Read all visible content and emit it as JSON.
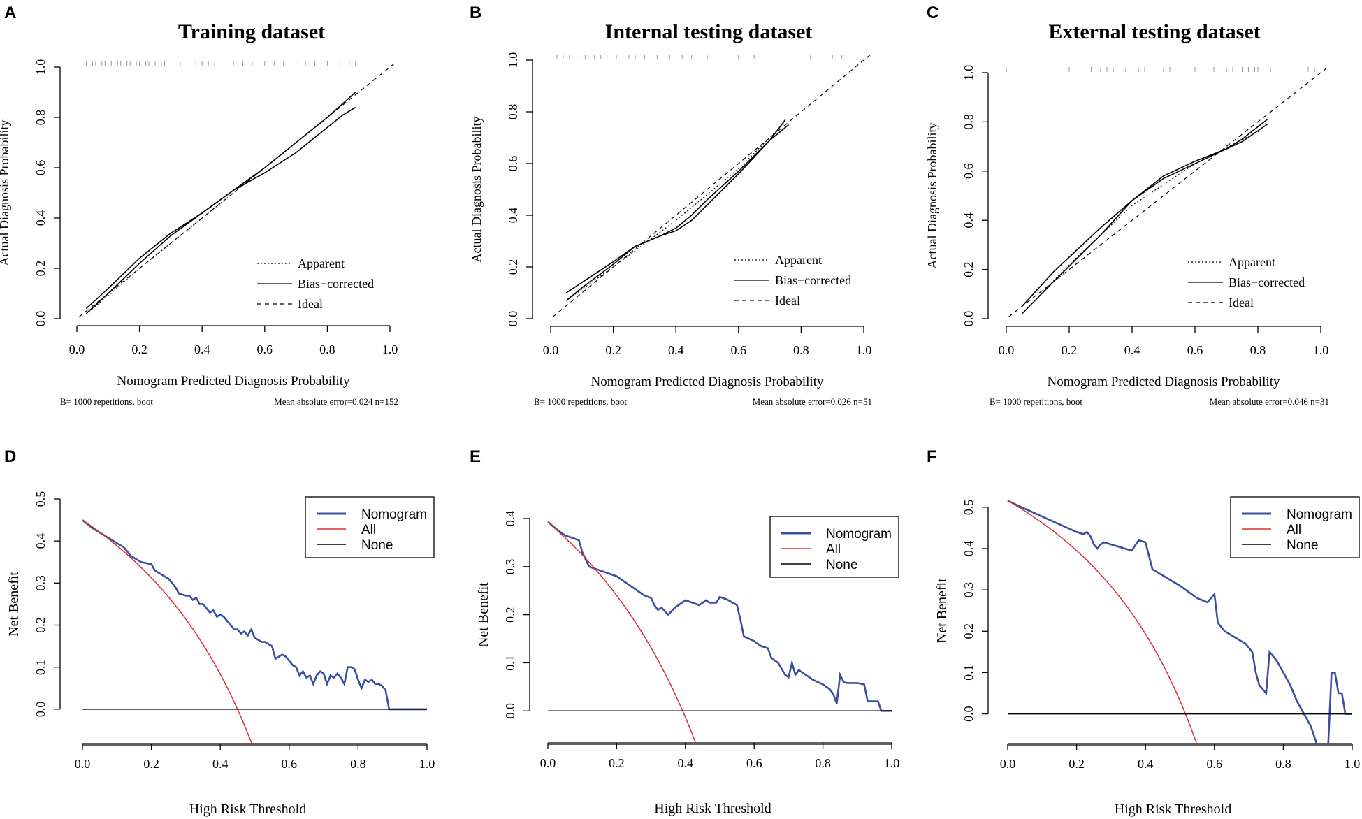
{
  "chart_data": [
    {
      "panel": "A",
      "type": "line",
      "title": "Training dataset",
      "xlabel": "Nomogram Predicted Diagnosis Probability",
      "ylabel": "Actual Diagnosis Probability",
      "xlim": [
        0,
        1
      ],
      "ylim": [
        0,
        1
      ],
      "xticks": [
        "0.0",
        "0.2",
        "0.4",
        "0.6",
        "0.8",
        "1.0"
      ],
      "yticks": [
        "0.0",
        "0.2",
        "0.4",
        "0.6",
        "0.8",
        "1.0"
      ],
      "legend": [
        "Apparent",
        "Bias−corrected",
        "Ideal"
      ],
      "footer_left": "B= 1000 repetitions, boot",
      "footer_right": "Mean absolute error=0.024 n=152",
      "rug": [
        0.03,
        0.05,
        0.06,
        0.08,
        0.09,
        0.11,
        0.13,
        0.14,
        0.16,
        0.17,
        0.19,
        0.2,
        0.22,
        0.23,
        0.25,
        0.27,
        0.28,
        0.3,
        0.33,
        0.38,
        0.4,
        0.42,
        0.44,
        0.47,
        0.5,
        0.53,
        0.56,
        0.6,
        0.63,
        0.66,
        0.7,
        0.73,
        0.76,
        0.8,
        0.84,
        0.87,
        0.89
      ],
      "series": [
        {
          "name": "Apparent",
          "style": "dotted",
          "x": [
            0.03,
            0.1,
            0.2,
            0.3,
            0.4,
            0.5,
            0.6,
            0.7,
            0.8,
            0.89
          ],
          "y": [
            0.02,
            0.09,
            0.2,
            0.3,
            0.4,
            0.5,
            0.6,
            0.7,
            0.8,
            0.9
          ]
        },
        {
          "name": "Bias−corrected",
          "style": "solid",
          "x": [
            0.03,
            0.1,
            0.2,
            0.3,
            0.4,
            0.5,
            0.6,
            0.7,
            0.8,
            0.85,
            0.89
          ],
          "y": [
            0.04,
            0.12,
            0.24,
            0.34,
            0.42,
            0.51,
            0.58,
            0.66,
            0.76,
            0.81,
            0.84
          ]
        },
        {
          "name": "Apparent-curve",
          "style": "solid",
          "x": [
            0.03,
            0.1,
            0.2,
            0.3,
            0.4,
            0.5,
            0.6,
            0.7,
            0.8,
            0.89
          ],
          "y": [
            0.02,
            0.1,
            0.22,
            0.33,
            0.42,
            0.51,
            0.6,
            0.7,
            0.8,
            0.9
          ]
        },
        {
          "name": "Ideal",
          "style": "dashed",
          "x": [
            -0.05,
            1.05
          ],
          "y": [
            -0.05,
            1.05
          ]
        }
      ]
    },
    {
      "panel": "B",
      "type": "line",
      "title": "Internal testing dataset",
      "xlabel": "Nomogram Predicted Diagnosis Probability",
      "ylabel": "Actual Diagnosis Probability",
      "xlim": [
        0,
        1
      ],
      "ylim": [
        0,
        1
      ],
      "xticks": [
        "0.0",
        "0.2",
        "0.4",
        "0.6",
        "0.8",
        "1.0"
      ],
      "yticks": [
        "0.0",
        "0.2",
        "0.4",
        "0.6",
        "0.8",
        "1.0"
      ],
      "legend": [
        "Apparent",
        "Bias−corrected",
        "Ideal"
      ],
      "footer_left": "B= 1000 repetitions, boot",
      "footer_right": "Mean absolute error=0.026 n=51",
      "rug": [
        0.02,
        0.04,
        0.06,
        0.09,
        0.11,
        0.12,
        0.14,
        0.16,
        0.18,
        0.21,
        0.25,
        0.27,
        0.3,
        0.34,
        0.38,
        0.42,
        0.45,
        0.5,
        0.55,
        0.6,
        0.65,
        0.72,
        0.78,
        0.83,
        0.9,
        0.93
      ],
      "series": [
        {
          "name": "Apparent",
          "style": "dotted",
          "x": [
            0.05,
            0.2,
            0.4,
            0.6,
            0.75
          ],
          "y": [
            0.07,
            0.2,
            0.38,
            0.58,
            0.76
          ]
        },
        {
          "name": "Bias−corrected",
          "style": "solid",
          "x": [
            0.05,
            0.1,
            0.2,
            0.27,
            0.35,
            0.4,
            0.45,
            0.5,
            0.6,
            0.7,
            0.76
          ],
          "y": [
            0.1,
            0.14,
            0.22,
            0.28,
            0.32,
            0.35,
            0.4,
            0.46,
            0.57,
            0.69,
            0.75
          ]
        },
        {
          "name": "Apparent-curve",
          "style": "solid",
          "x": [
            0.05,
            0.1,
            0.2,
            0.27,
            0.35,
            0.4,
            0.45,
            0.5,
            0.6,
            0.7,
            0.75
          ],
          "y": [
            0.07,
            0.12,
            0.21,
            0.28,
            0.32,
            0.34,
            0.38,
            0.44,
            0.56,
            0.69,
            0.77
          ]
        },
        {
          "name": "Ideal",
          "style": "dashed",
          "x": [
            -0.05,
            1.05
          ],
          "y": [
            -0.05,
            1.05
          ]
        }
      ]
    },
    {
      "panel": "C",
      "type": "line",
      "title": "External testing dataset",
      "xlabel": "Nomogram Predicted Diagnosis Probability",
      "ylabel": "Actual Diagnosis Probability",
      "xlim": [
        0,
        1
      ],
      "ylim": [
        0,
        1
      ],
      "xticks": [
        "0.0",
        "0.2",
        "0.4",
        "0.6",
        "0.8",
        "1.0"
      ],
      "yticks": [
        "0.0",
        "0.2",
        "0.4",
        "0.6",
        "0.8",
        "1.0"
      ],
      "legend": [
        "Apparent",
        "Bias−corrected",
        "Ideal"
      ],
      "footer_left": "B= 1000 repetitions, boot",
      "footer_right": "Mean absolute error=0.046 n=31",
      "rug": [
        0.0,
        0.05,
        0.2,
        0.27,
        0.3,
        0.32,
        0.34,
        0.38,
        0.42,
        0.44,
        0.47,
        0.5,
        0.52,
        0.6,
        0.66,
        0.7,
        0.72,
        0.75,
        0.77,
        0.79,
        0.8,
        0.84,
        0.96,
        0.98
      ],
      "series": [
        {
          "name": "Apparent",
          "style": "dotted",
          "x": [
            0.05,
            0.2,
            0.4,
            0.6,
            0.8,
            0.83
          ],
          "y": [
            0.02,
            0.22,
            0.46,
            0.63,
            0.76,
            0.8
          ]
        },
        {
          "name": "Bias−corrected",
          "style": "solid",
          "x": [
            0.05,
            0.15,
            0.3,
            0.4,
            0.5,
            0.6,
            0.7,
            0.75,
            0.83
          ],
          "y": [
            0.05,
            0.19,
            0.37,
            0.48,
            0.58,
            0.64,
            0.69,
            0.72,
            0.79
          ]
        },
        {
          "name": "Apparent-curve",
          "style": "solid",
          "x": [
            0.05,
            0.15,
            0.3,
            0.4,
            0.5,
            0.6,
            0.7,
            0.75,
            0.83
          ],
          "y": [
            0.02,
            0.15,
            0.34,
            0.48,
            0.57,
            0.63,
            0.69,
            0.73,
            0.81
          ]
        },
        {
          "name": "Ideal",
          "style": "dashed",
          "x": [
            -0.05,
            1.05
          ],
          "y": [
            -0.05,
            1.05
          ]
        }
      ]
    },
    {
      "panel": "D",
      "type": "line",
      "xlabel": "High Risk Threshold",
      "ylabel": "Net Benefit",
      "xlim": [
        0,
        1
      ],
      "ylim": [
        -0.08,
        0.5
      ],
      "xticks": [
        "0.0",
        "0.2",
        "0.4",
        "0.6",
        "0.8",
        "1.0"
      ],
      "yticks": [
        "0.0",
        "0.1",
        "0.2",
        "0.3",
        "0.4",
        "0.5"
      ],
      "legend": [
        "Nomogram",
        "All",
        "None"
      ],
      "prevalence": 0.45,
      "series": [
        {
          "name": "Nomogram",
          "color": "#3b4fa0",
          "x": [
            0,
            0.03,
            0.06,
            0.09,
            0.12,
            0.14,
            0.17,
            0.2,
            0.21,
            0.22,
            0.23,
            0.24,
            0.25,
            0.26,
            0.27,
            0.28,
            0.3,
            0.31,
            0.32,
            0.33,
            0.34,
            0.35,
            0.36,
            0.37,
            0.38,
            0.39,
            0.4,
            0.41,
            0.42,
            0.43,
            0.44,
            0.45,
            0.46,
            0.47,
            0.48,
            0.49,
            0.5,
            0.51,
            0.52,
            0.53,
            0.54,
            0.55,
            0.56,
            0.57,
            0.58,
            0.59,
            0.6,
            0.61,
            0.62,
            0.63,
            0.64,
            0.65,
            0.66,
            0.67,
            0.68,
            0.69,
            0.7,
            0.71,
            0.72,
            0.73,
            0.74,
            0.75,
            0.76,
            0.77,
            0.78,
            0.79,
            0.8,
            0.81,
            0.82,
            0.83,
            0.84,
            0.85,
            0.86,
            0.87,
            0.88,
            0.89,
            0.9,
            0.91,
            0.92,
            1.0
          ],
          "values": [
            0.45,
            0.43,
            0.415,
            0.4,
            0.385,
            0.365,
            0.35,
            0.345,
            0.33,
            0.325,
            0.32,
            0.315,
            0.31,
            0.3,
            0.29,
            0.275,
            0.27,
            0.27,
            0.26,
            0.265,
            0.25,
            0.25,
            0.24,
            0.23,
            0.235,
            0.22,
            0.225,
            0.22,
            0.21,
            0.2,
            0.19,
            0.19,
            0.18,
            0.185,
            0.175,
            0.19,
            0.17,
            0.165,
            0.16,
            0.16,
            0.155,
            0.15,
            0.12,
            0.125,
            0.13,
            0.125,
            0.115,
            0.105,
            0.1,
            0.08,
            0.09,
            0.075,
            0.08,
            0.06,
            0.08,
            0.09,
            0.085,
            0.06,
            0.08,
            0.075,
            0.085,
            0.075,
            0.06,
            0.1,
            0.1,
            0.095,
            0.07,
            0.05,
            0.07,
            0.065,
            0.07,
            0.06,
            0.06,
            0.055,
            0.045,
            0.0,
            0.0,
            0.0,
            0.0,
            0.0
          ]
        },
        {
          "name": "All",
          "color": "#d93030"
        },
        {
          "name": "None",
          "color": "#000000",
          "x": [
            0,
            1
          ],
          "values": [
            0,
            0
          ]
        }
      ]
    },
    {
      "panel": "E",
      "type": "line",
      "xlabel": "High Risk Threshold",
      "ylabel": "Net Benefit",
      "xlim": [
        0,
        1
      ],
      "ylim": [
        -0.065,
        0.4
      ],
      "xticks": [
        "0.0",
        "0.2",
        "0.4",
        "0.6",
        "0.8",
        "1.0"
      ],
      "yticks": [
        "0.0",
        "0.1",
        "0.2",
        "0.3",
        "0.4"
      ],
      "legend": [
        "Nomogram",
        "All",
        "None"
      ],
      "prevalence": 0.392,
      "series": [
        {
          "name": "Nomogram",
          "color": "#3b4fa0",
          "x": [
            0,
            0.03,
            0.05,
            0.07,
            0.09,
            0.1,
            0.12,
            0.14,
            0.16,
            0.18,
            0.2,
            0.22,
            0.24,
            0.26,
            0.28,
            0.3,
            0.31,
            0.32,
            0.33,
            0.35,
            0.37,
            0.4,
            0.42,
            0.44,
            0.46,
            0.47,
            0.48,
            0.49,
            0.5,
            0.52,
            0.55,
            0.56,
            0.57,
            0.6,
            0.62,
            0.64,
            0.65,
            0.67,
            0.69,
            0.7,
            0.71,
            0.72,
            0.73,
            0.75,
            0.77,
            0.8,
            0.82,
            0.83,
            0.84,
            0.85,
            0.86,
            0.87,
            0.9,
            0.92,
            0.93,
            0.96,
            0.97,
            1.0
          ],
          "values": [
            0.393,
            0.375,
            0.365,
            0.36,
            0.355,
            0.33,
            0.3,
            0.295,
            0.29,
            0.285,
            0.28,
            0.27,
            0.26,
            0.25,
            0.24,
            0.235,
            0.22,
            0.21,
            0.215,
            0.2,
            0.215,
            0.23,
            0.225,
            0.22,
            0.23,
            0.225,
            0.225,
            0.225,
            0.237,
            0.232,
            0.22,
            0.19,
            0.155,
            0.145,
            0.135,
            0.13,
            0.11,
            0.1,
            0.075,
            0.07,
            0.1,
            0.075,
            0.085,
            0.075,
            0.065,
            0.055,
            0.045,
            0.035,
            0.015,
            0.075,
            0.06,
            0.058,
            0.058,
            0.055,
            0.02,
            0.02,
            0.0,
            0.0
          ]
        },
        {
          "name": "All",
          "color": "#d93030"
        },
        {
          "name": "None",
          "color": "#000000",
          "x": [
            0,
            1
          ],
          "values": [
            0,
            0
          ]
        }
      ]
    },
    {
      "panel": "F",
      "type": "line",
      "xlabel": "High Risk Threshold",
      "ylabel": "Net Benefit",
      "xlim": [
        0,
        1
      ],
      "ylim": [
        -0.07,
        0.52
      ],
      "xticks": [
        "0.0",
        "0.2",
        "0.4",
        "0.6",
        "0.8",
        "1.0"
      ],
      "yticks": [
        "0.0",
        "0.1",
        "0.2",
        "0.3",
        "0.4",
        "0.5"
      ],
      "legend": [
        "Nomogram",
        "All",
        "None"
      ],
      "prevalence": 0.516,
      "series": [
        {
          "name": "Nomogram",
          "color": "#3b4fa0",
          "x": [
            0,
            0.04,
            0.08,
            0.12,
            0.16,
            0.2,
            0.22,
            0.23,
            0.24,
            0.25,
            0.26,
            0.27,
            0.28,
            0.3,
            0.32,
            0.34,
            0.36,
            0.38,
            0.4,
            0.42,
            0.45,
            0.5,
            0.55,
            0.58,
            0.6,
            0.61,
            0.63,
            0.65,
            0.67,
            0.69,
            0.71,
            0.72,
            0.73,
            0.75,
            0.76,
            0.78,
            0.8,
            0.82,
            0.84,
            0.86,
            0.88,
            0.9,
            0.91,
            0.92,
            0.93,
            0.94,
            0.95,
            0.96,
            0.97,
            0.98,
            1.0
          ],
          "values": [
            0.516,
            0.5,
            0.485,
            0.47,
            0.455,
            0.44,
            0.435,
            0.44,
            0.43,
            0.41,
            0.4,
            0.41,
            0.415,
            0.41,
            0.405,
            0.4,
            0.395,
            0.42,
            0.415,
            0.35,
            0.335,
            0.31,
            0.28,
            0.27,
            0.29,
            0.22,
            0.2,
            0.19,
            0.18,
            0.17,
            0.15,
            0.1,
            0.07,
            0.05,
            0.15,
            0.13,
            0.1,
            0.07,
            0.03,
            0.0,
            -0.03,
            -0.08,
            -0.08,
            -0.08,
            -0.08,
            0.1,
            0.1,
            0.05,
            0.05,
            0.0,
            0.0
          ]
        },
        {
          "name": "All",
          "color": "#d93030"
        },
        {
          "name": "None",
          "color": "#000000",
          "x": [
            0,
            1
          ],
          "values": [
            0,
            0
          ]
        }
      ]
    }
  ]
}
